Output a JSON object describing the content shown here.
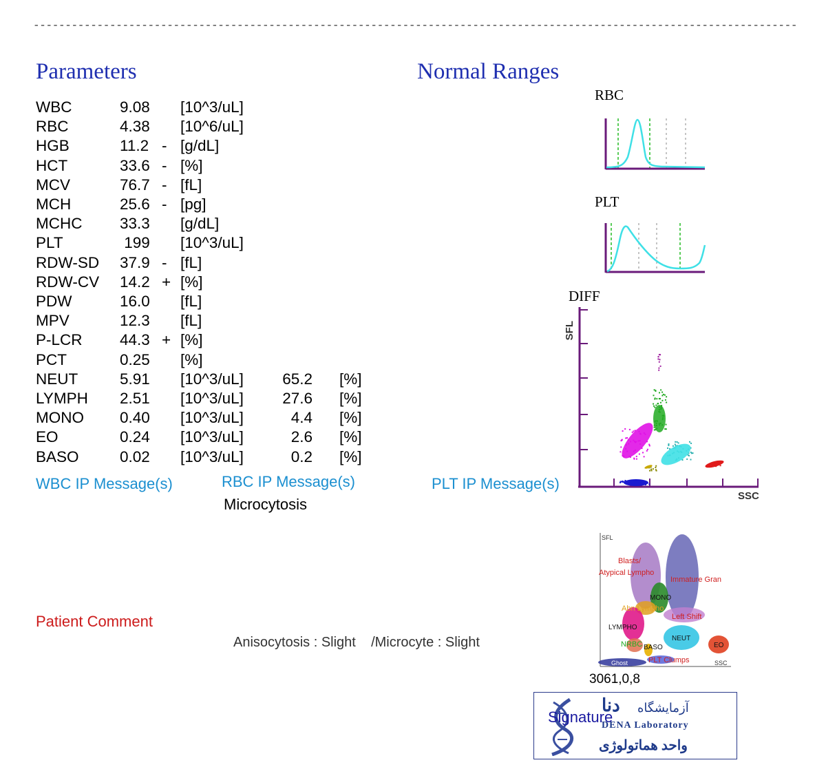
{
  "separator": "------------------------------------------------------------------------------------------------------------------------",
  "headers": {
    "parameters": "Parameters",
    "normal_ranges": "Normal Ranges"
  },
  "rows": [
    {
      "name": "WBC",
      "value": "9.08",
      "flag": "",
      "unit": "[10^3/uL]"
    },
    {
      "name": "RBC",
      "value": "4.38",
      "flag": "",
      "unit": "[10^6/uL]"
    },
    {
      "name": "HGB",
      "value": "11.2",
      "flag": "-",
      "unit": "[g/dL]"
    },
    {
      "name": "HCT",
      "value": "33.6",
      "flag": "-",
      "unit": "[%]"
    },
    {
      "name": "MCV",
      "value": "76.7",
      "flag": "-",
      "unit": "[fL]"
    },
    {
      "name": "MCH",
      "value": "25.6",
      "flag": "-",
      "unit": "[pg]"
    },
    {
      "name": "MCHC",
      "value": "33.3",
      "flag": "",
      "unit": "[g/dL]"
    },
    {
      "name": "PLT",
      "value": " 199",
      "flag": "",
      "unit": "[10^3/uL]"
    },
    {
      "name": "RDW-SD",
      "value": "37.9",
      "flag": "-",
      "unit": "[fL]"
    },
    {
      "name": "RDW-CV",
      "value": "14.2",
      "flag": "+",
      "unit": "[%]"
    },
    {
      "name": "PDW",
      "value": "16.0",
      "flag": "",
      "unit": "[fL]"
    },
    {
      "name": "MPV",
      "value": "12.3",
      "flag": "",
      "unit": "[fL]"
    },
    {
      "name": "P-LCR",
      "value": "44.3",
      "flag": "+",
      "unit": "[%]"
    },
    {
      "name": "PCT",
      "value": "0.25",
      "flag": "",
      "unit": "[%]"
    },
    {
      "name": "NEUT",
      "value": "5.91",
      "flag": "",
      "unit": "[10^3/uL]",
      "pct": "65.2",
      "pct_unit": "[%]"
    },
    {
      "name": "LYMPH",
      "value": "2.51",
      "flag": "",
      "unit": "[10^3/uL]",
      "pct": "27.6",
      "pct_unit": "[%]"
    },
    {
      "name": "MONO",
      "value": "0.40",
      "flag": "",
      "unit": "[10^3/uL]",
      "pct": "4.4",
      "pct_unit": "[%]"
    },
    {
      "name": "EO",
      "value": "0.24",
      "flag": "",
      "unit": "[10^3/uL]",
      "pct": "2.6",
      "pct_unit": "[%]"
    },
    {
      "name": "BASO",
      "value": "0.02",
      "flag": "",
      "unit": "[10^3/uL]",
      "pct": "0.2",
      "pct_unit": "[%]"
    }
  ],
  "messages": {
    "wbc_label": "WBC IP Message(s)",
    "rbc_label": "RBC IP Message(s)",
    "rbc_message": "Microcytosis",
    "plt_label": "PLT IP Message(s)"
  },
  "patient_comment": {
    "label": "Patient Comment",
    "text": "Anisocytosis : Slight    /Microcyte : Slight"
  },
  "charts": {
    "rbc_title": "RBC",
    "plt_title": "PLT",
    "diff_title": "DIFF",
    "diff_y_axis": "SFL",
    "diff_x_axis": "SSC"
  },
  "legend_diagram": {
    "axis_y": "SFL",
    "axis_x": "SSC",
    "labels": {
      "blasts": "Blasts/",
      "atypical": "Atypical Lympho",
      "immature": "Immature Gran",
      "mono": "MONO",
      "abn_lympho": "Abn Lympho",
      "left_shift": "Left Shift",
      "lympho": "LYMPHO",
      "neut": "NEUT",
      "nrbc": "NRBC",
      "baso": "BASO",
      "eo": "EO",
      "plt_clumps": "PLT Clumps",
      "ghost": "Ghost"
    }
  },
  "sample_code": "3061,0,8",
  "stamp": {
    "signature_label": "Signature",
    "lab_fa": "آزمایشگاه",
    "lab_name_fa": "دنا",
    "lab_en": "DENA Laboratory",
    "unit_fa": "واحد هماتولوژی"
  },
  "colors": {
    "header": "#1f2fb0",
    "ip_message": "#1b8fd0",
    "patient_comment": "#cc1b1b",
    "axis_purple": "#6a1a7a",
    "curve_cyan": "#3fe0e6",
    "marker_green": "#22bb22"
  }
}
